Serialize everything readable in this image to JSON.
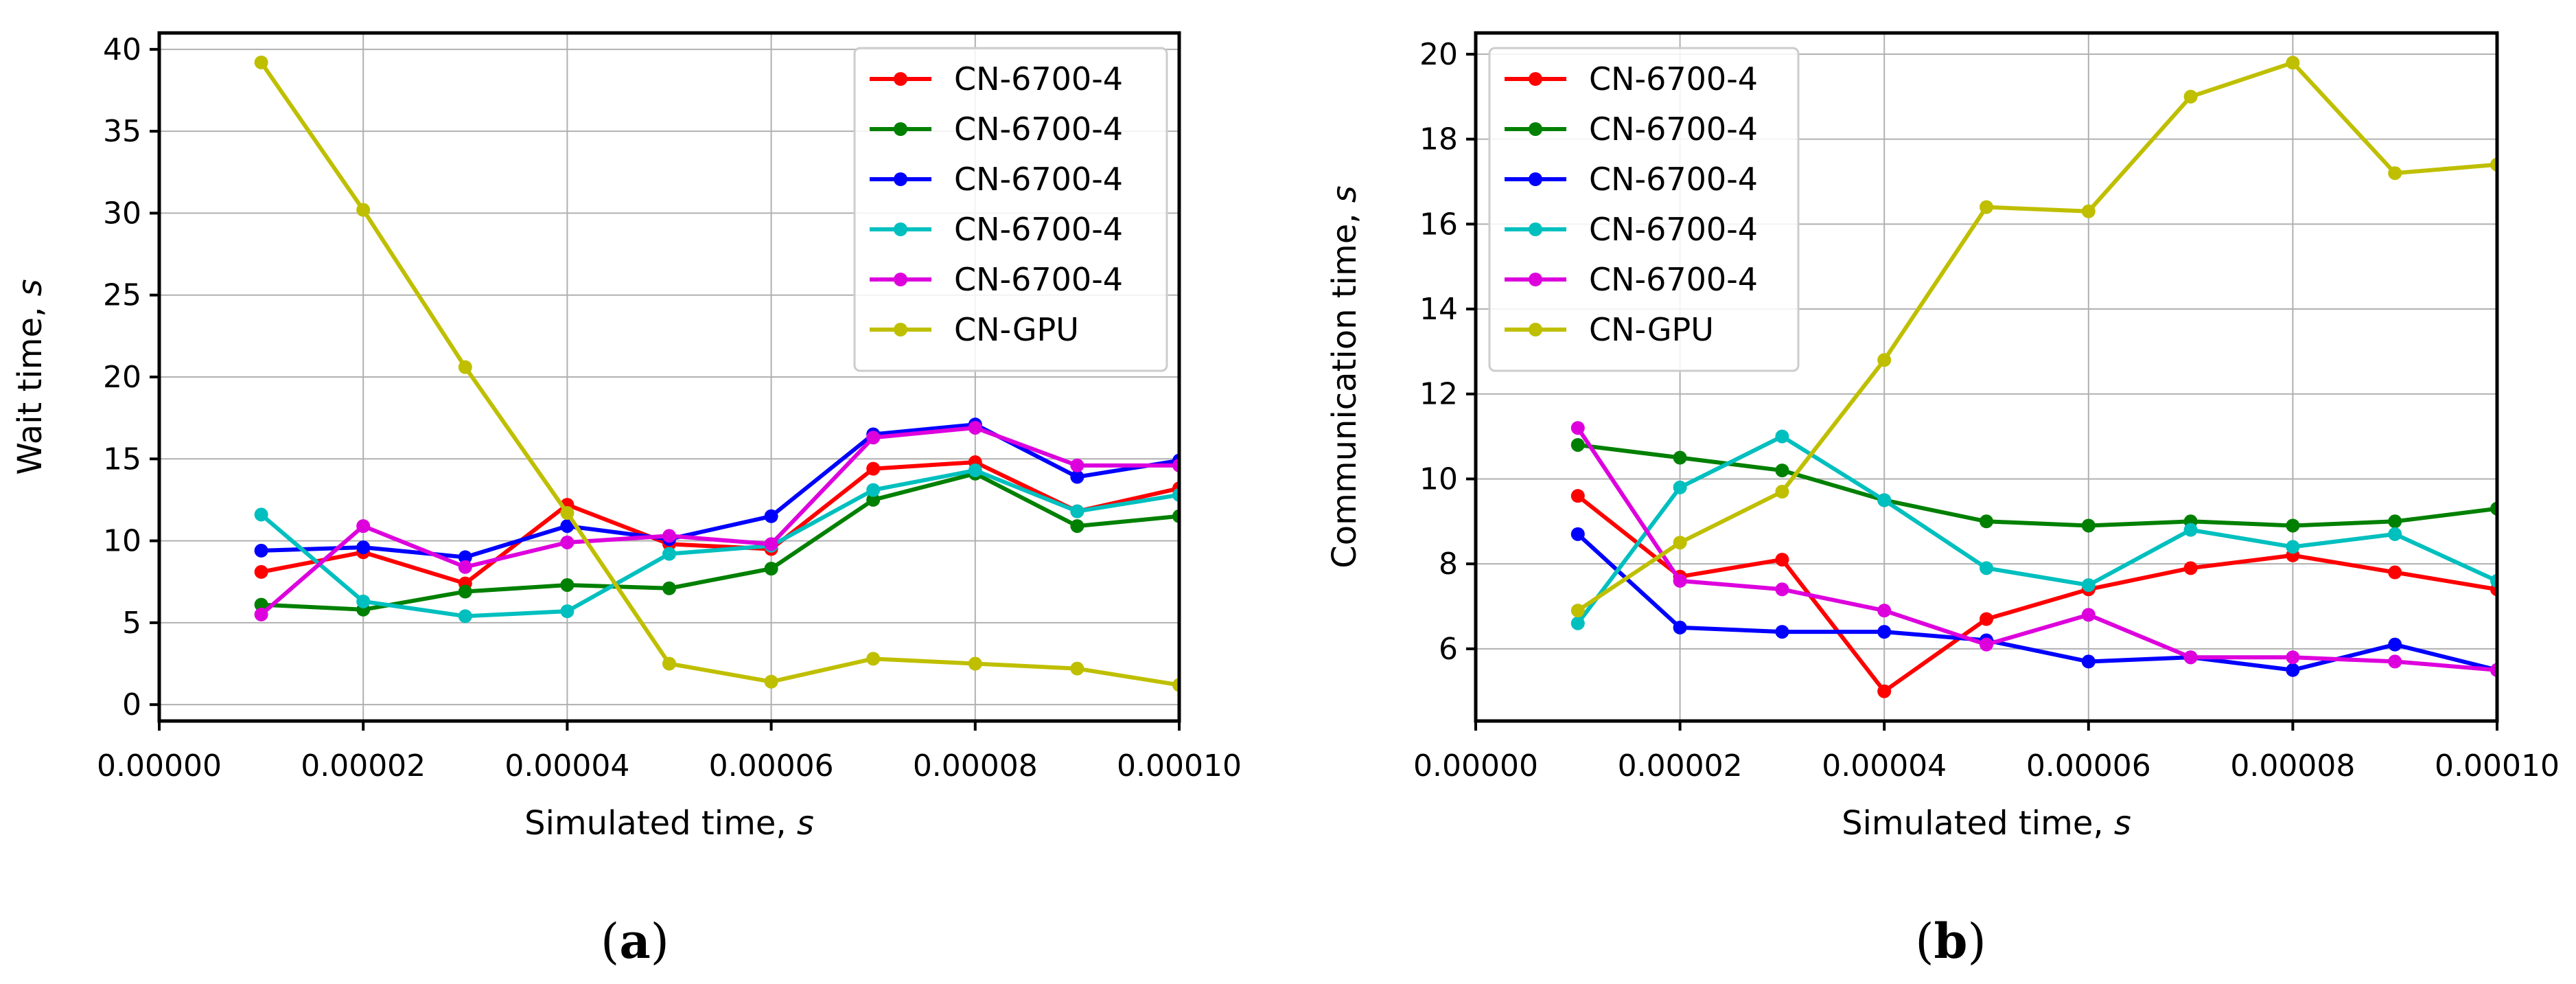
{
  "chart_data": [
    {
      "type": "line",
      "panel_label": "(a)",
      "xlabel": "Simulated time, ",
      "xlabel_var": "s",
      "ylabel": "Wait time, ",
      "ylabel_var": "s",
      "xlim": [
        0,
        0.0001
      ],
      "ylim": [
        -1,
        41
      ],
      "xticks": [
        0,
        2e-05,
        4e-05,
        6e-05,
        8e-05,
        0.0001
      ],
      "xtick_labels": [
        "0.00000",
        "0.00002",
        "0.00004",
        "0.00006",
        "0.00008",
        "0.00010"
      ],
      "yticks": [
        0,
        5,
        10,
        15,
        20,
        25,
        30,
        35,
        40
      ],
      "ytick_labels": [
        "0",
        "5",
        "10",
        "15",
        "20",
        "25",
        "30",
        "35",
        "40"
      ],
      "grid": true,
      "legend_position": "top-right",
      "x": [
        1e-05,
        2e-05,
        3e-05,
        4e-05,
        5e-05,
        6e-05,
        7e-05,
        8e-05,
        9e-05,
        0.0001
      ],
      "series": [
        {
          "name": "CN-6700-4",
          "color": "#ff0000",
          "values": [
            8.1,
            9.3,
            7.4,
            12.2,
            9.8,
            9.5,
            14.4,
            14.8,
            11.8,
            13.2
          ]
        },
        {
          "name": "CN-6700-4",
          "color": "#008000",
          "values": [
            6.1,
            5.8,
            6.9,
            7.3,
            7.1,
            8.3,
            12.5,
            14.1,
            10.9,
            11.5
          ]
        },
        {
          "name": "CN-6700-4",
          "color": "#0000ff",
          "values": [
            9.4,
            9.6,
            9.0,
            10.9,
            10.1,
            11.5,
            16.5,
            17.1,
            13.9,
            14.9
          ]
        },
        {
          "name": "CN-6700-4",
          "color": "#00bfbf",
          "values": [
            11.6,
            6.3,
            5.4,
            5.7,
            9.2,
            9.7,
            13.1,
            14.3,
            11.8,
            12.8
          ]
        },
        {
          "name": "CN-6700-4",
          "color": "#dd00dd",
          "values": [
            5.5,
            10.9,
            8.4,
            9.9,
            10.3,
            9.8,
            16.3,
            16.9,
            14.6,
            14.6
          ]
        },
        {
          "name": "CN-GPU",
          "color": "#bfbf00",
          "values": [
            39.2,
            30.2,
            20.6,
            11.7,
            2.5,
            1.4,
            2.8,
            2.5,
            2.2,
            1.2
          ]
        }
      ]
    },
    {
      "type": "line",
      "panel_label": "(b)",
      "xlabel": "Simulated time, ",
      "xlabel_var": "s",
      "ylabel": "Communication time, ",
      "ylabel_var": "s",
      "xlim": [
        0,
        0.0001
      ],
      "ylim": [
        4.3,
        20.5
      ],
      "xticks": [
        0,
        2e-05,
        4e-05,
        6e-05,
        8e-05,
        0.0001
      ],
      "xtick_labels": [
        "0.00000",
        "0.00002",
        "0.00004",
        "0.00006",
        "0.00008",
        "0.00010"
      ],
      "yticks": [
        6,
        8,
        10,
        12,
        14,
        16,
        18,
        20
      ],
      "ytick_labels": [
        "6",
        "8",
        "10",
        "12",
        "14",
        "16",
        "18",
        "20"
      ],
      "grid": true,
      "legend_position": "top-left",
      "x": [
        1e-05,
        2e-05,
        3e-05,
        4e-05,
        5e-05,
        6e-05,
        7e-05,
        8e-05,
        9e-05,
        0.0001
      ],
      "series": [
        {
          "name": "CN-6700-4",
          "color": "#ff0000",
          "values": [
            9.6,
            7.7,
            8.1,
            5.0,
            6.7,
            7.4,
            7.9,
            8.2,
            7.8,
            7.4
          ]
        },
        {
          "name": "CN-6700-4",
          "color": "#008000",
          "values": [
            10.8,
            10.5,
            10.2,
            9.5,
            9.0,
            8.9,
            9.0,
            8.9,
            9.0,
            9.3
          ]
        },
        {
          "name": "CN-6700-4",
          "color": "#0000ff",
          "values": [
            8.7,
            6.5,
            6.4,
            6.4,
            6.2,
            5.7,
            5.8,
            5.5,
            6.1,
            5.5
          ]
        },
        {
          "name": "CN-6700-4",
          "color": "#00bfbf",
          "values": [
            6.6,
            9.8,
            11.0,
            9.5,
            7.9,
            7.5,
            8.8,
            8.4,
            8.7,
            7.6
          ]
        },
        {
          "name": "CN-6700-4",
          "color": "#dd00dd",
          "values": [
            11.2,
            7.6,
            7.4,
            6.9,
            6.1,
            6.8,
            5.8,
            5.8,
            5.7,
            5.5
          ]
        },
        {
          "name": "CN-GPU",
          "color": "#bfbf00",
          "values": [
            6.9,
            8.5,
            9.7,
            12.8,
            16.4,
            16.3,
            19.0,
            19.8,
            17.2,
            17.4
          ]
        }
      ]
    }
  ]
}
